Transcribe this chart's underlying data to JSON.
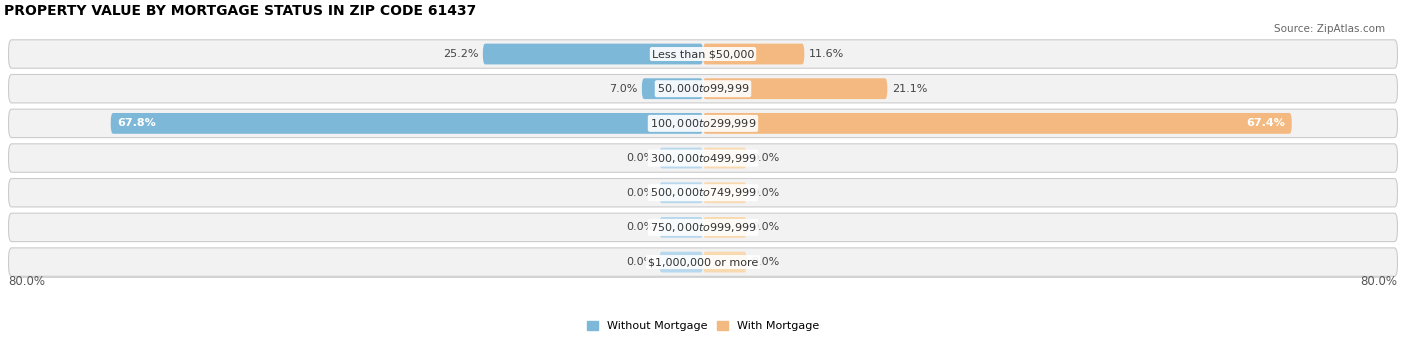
{
  "title": "PROPERTY VALUE BY MORTGAGE STATUS IN ZIP CODE 61437",
  "source": "Source: ZipAtlas.com",
  "categories": [
    "Less than $50,000",
    "$50,000 to $99,999",
    "$100,000 to $299,999",
    "$300,000 to $499,999",
    "$500,000 to $749,999",
    "$750,000 to $999,999",
    "$1,000,000 or more"
  ],
  "without_mortgage": [
    25.2,
    7.0,
    67.8,
    0.0,
    0.0,
    0.0,
    0.0
  ],
  "with_mortgage": [
    11.6,
    21.1,
    67.4,
    0.0,
    0.0,
    0.0,
    0.0
  ],
  "color_without": "#7eb8d8",
  "color_with": "#f4b980",
  "color_without_light": "#b8d8ed",
  "color_with_light": "#f9d9b0",
  "row_bg_color": "#f2f2f2",
  "row_border_color": "#cccccc",
  "max_val": 80.0,
  "min_bar_width": 5.0,
  "x_left_label": "80.0%",
  "x_right_label": "80.0%",
  "legend_without": "Without Mortgage",
  "legend_with": "With Mortgage",
  "title_fontsize": 10,
  "label_fontsize": 8,
  "cat_fontsize": 8,
  "tick_fontsize": 8.5,
  "large_bar_threshold": 30.0
}
